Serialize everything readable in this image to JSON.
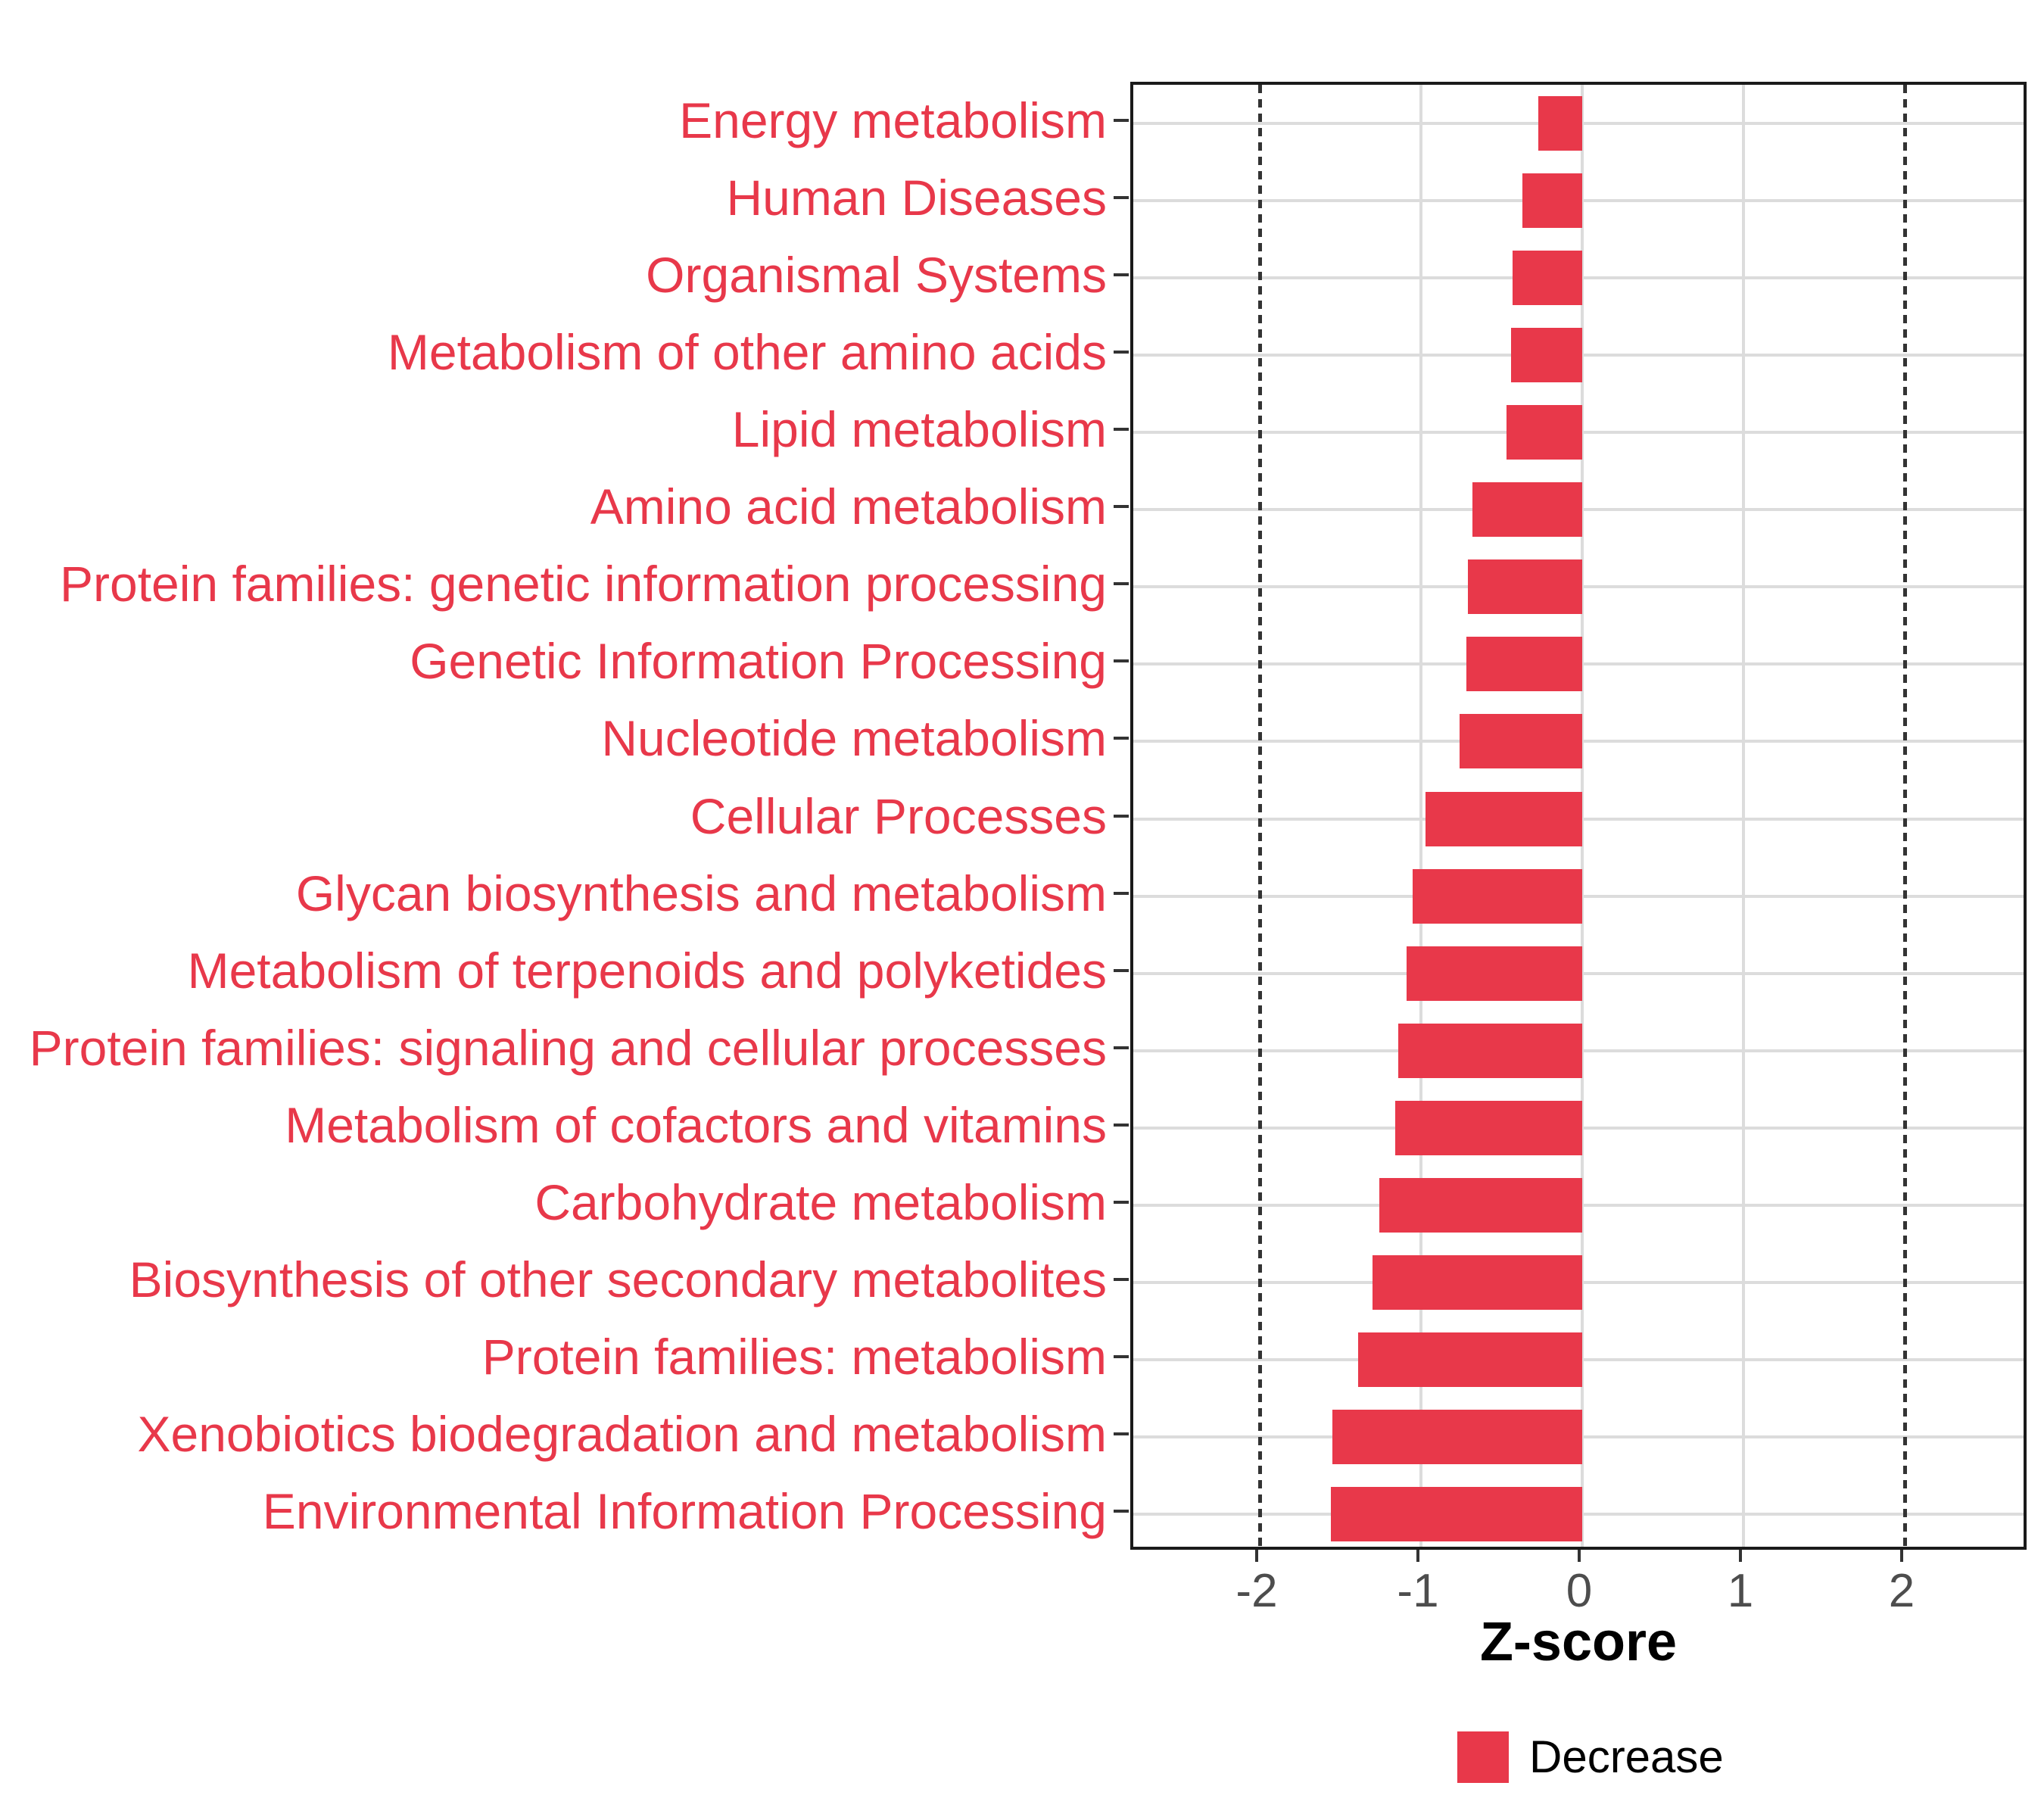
{
  "chart_data": {
    "type": "bar",
    "orientation": "horizontal",
    "title": "",
    "xlabel": "Z-score",
    "ylabel": "",
    "categories": [
      "Energy metabolism",
      "Human Diseases",
      "Organismal Systems",
      "Metabolism of other amino acids",
      "Lipid metabolism",
      "Amino acid metabolism",
      "Protein families: genetic information processing",
      "Genetic Information Processing",
      "Nucleotide metabolism",
      "Cellular Processes",
      "Glycan biosynthesis and metabolism",
      "Metabolism of terpenoids and polyketides",
      "Protein families: signaling and cellular processes",
      "Metabolism of cofactors and vitamins",
      "Carbohydrate metabolism",
      "Biosynthesis of other secondary metabolites",
      "Protein families: metabolism",
      "Xenobiotics biodegradation and metabolism",
      "Environmental Information Processing"
    ],
    "series": [
      {
        "name": "Decrease",
        "values": [
          -0.27,
          -0.37,
          -0.43,
          -0.44,
          -0.47,
          -0.68,
          -0.71,
          -0.72,
          -0.76,
          -0.97,
          -1.05,
          -1.09,
          -1.14,
          -1.16,
          -1.26,
          -1.3,
          -1.39,
          -1.55,
          -1.56
        ]
      }
    ],
    "xlim": [
      -2.78,
      2.78
    ],
    "x_ticks": [
      -2,
      -1,
      0,
      1,
      2
    ],
    "x_tick_labels": [
      "-2",
      "-1",
      "0",
      "1",
      "2"
    ],
    "gridline_x_values": [
      -1,
      0,
      1
    ],
    "reference_lines": [
      -2,
      2
    ],
    "grid": "major",
    "legend_position": "bottom",
    "legend": {
      "items": [
        {
          "label": "Decrease",
          "color": "#E8384A"
        }
      ]
    },
    "colors": {
      "bar": "#E8384A",
      "category_label": "#E8384A",
      "tick_label": "#4D4D4D",
      "axis_title": "#000000",
      "gridline": "#DCDCDC",
      "reference_line": "#333333",
      "panel_border": "#1A1A1A",
      "background": "#FFFFFF"
    }
  }
}
